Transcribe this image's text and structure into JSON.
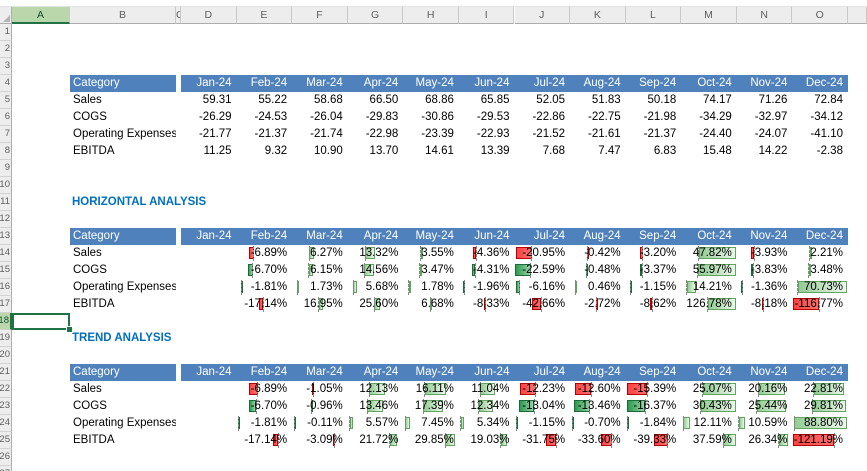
{
  "palette": {
    "table_header_blue": "#4F81BD",
    "section_title_blue": "#0070C0",
    "selection_green": "#217346",
    "selected_header_fill": "#B9D7AB",
    "bar_positive_border": "#5EA55E",
    "bar_positive_from": "#93CC93",
    "bar_positive_to": "#EDF7ED",
    "bar_negative_red_border": "#B50000",
    "bar_negative_red_from": "#FF4242",
    "bar_negative_red_to": "#FF6E6E",
    "bar_negative_green_border": "#1B6B3A",
    "bar_negative_green_from": "#2F9A50",
    "bar_negative_green_to": "#93D2A4"
  },
  "grid": {
    "column_letters": [
      "A",
      "B",
      "C",
      "D",
      "E",
      "F",
      "G",
      "H",
      "I",
      "J",
      "K",
      "L",
      "M",
      "N",
      "O"
    ],
    "row_numbers": [
      1,
      2,
      3,
      4,
      5,
      6,
      7,
      8,
      9,
      10,
      11,
      12,
      13,
      14,
      15,
      16,
      17,
      18,
      19,
      20,
      21,
      22,
      23,
      24,
      25,
      26,
      27
    ]
  },
  "selection": {
    "active_cell": "A18",
    "column": "A",
    "row": 18
  },
  "months": [
    "Jan-24",
    "Feb-24",
    "Mar-24",
    "Apr-24",
    "May-24",
    "Jun-24",
    "Jul-24",
    "Aug-24",
    "Sep-24",
    "Oct-24",
    "Nov-24",
    "Dec-24"
  ],
  "tables": [
    {
      "title": null,
      "category_header": "Category",
      "format": "number",
      "data_bars": false,
      "rows": [
        {
          "label": "Sales",
          "values": [
            59.31,
            55.22,
            58.68,
            66.5,
            68.86,
            65.85,
            52.05,
            51.83,
            50.18,
            74.17,
            71.26,
            72.84
          ]
        },
        {
          "label": "COGS",
          "values": [
            -26.29,
            -24.53,
            -26.04,
            -29.83,
            -30.86,
            -29.53,
            -22.86,
            -22.75,
            -21.98,
            -34.29,
            -32.97,
            -34.12
          ]
        },
        {
          "label": "Operating Expenses",
          "values": [
            -21.77,
            -21.37,
            -21.74,
            -22.98,
            -23.39,
            -22.93,
            -21.52,
            -21.61,
            -21.37,
            -24.4,
            -24.07,
            -41.1
          ]
        },
        {
          "label": "EBITDA",
          "values": [
            11.25,
            9.32,
            10.9,
            13.7,
            14.61,
            13.39,
            7.68,
            7.47,
            6.83,
            15.48,
            14.22,
            -2.38
          ]
        }
      ]
    },
    {
      "title": "HORIZONTAL ANALYSIS",
      "category_header": "Category",
      "format": "percent",
      "data_bars": true,
      "rows": [
        {
          "label": "Sales",
          "negative_bar": "red",
          "values": [
            null,
            -6.89,
            6.27,
            13.32,
            3.55,
            -4.36,
            -20.95,
            -0.42,
            -3.2,
            47.82,
            -3.93,
            2.21
          ]
        },
        {
          "label": "COGS",
          "negative_bar": "green",
          "values": [
            null,
            -6.7,
            6.15,
            14.56,
            3.47,
            -4.31,
            -22.59,
            -0.48,
            -3.37,
            55.97,
            -3.83,
            3.48
          ]
        },
        {
          "label": "Operating Expenses",
          "negative_bar": "green",
          "values": [
            null,
            -1.81,
            1.73,
            5.68,
            1.78,
            -1.96,
            -6.16,
            0.46,
            -1.15,
            14.21,
            -1.36,
            70.73
          ]
        },
        {
          "label": "EBITDA",
          "negative_bar": "red",
          "values": [
            null,
            -17.14,
            16.95,
            25.6,
            6.68,
            -8.33,
            -42.66,
            -2.72,
            -8.62,
            126.78,
            -8.18,
            -116.77
          ]
        }
      ]
    },
    {
      "title": "TREND ANALYSIS",
      "category_header": "Category",
      "format": "percent",
      "data_bars": true,
      "rows": [
        {
          "label": "Sales",
          "negative_bar": "red",
          "values": [
            null,
            -6.89,
            -1.05,
            12.13,
            16.11,
            11.04,
            -12.23,
            -12.6,
            -15.39,
            25.07,
            20.16,
            22.81
          ]
        },
        {
          "label": "COGS",
          "negative_bar": "green",
          "values": [
            null,
            -6.7,
            -0.96,
            13.46,
            17.39,
            12.34,
            -13.04,
            -13.46,
            -16.37,
            30.43,
            25.44,
            29.81
          ]
        },
        {
          "label": "Operating Expenses",
          "negative_bar": "green",
          "values": [
            null,
            -1.81,
            -0.11,
            5.57,
            7.45,
            5.34,
            -1.15,
            -0.7,
            -1.84,
            12.11,
            10.59,
            88.8
          ]
        },
        {
          "label": "EBITDA",
          "negative_bar": "red",
          "values": [
            null,
            -17.14,
            -3.09,
            21.72,
            29.85,
            19.03,
            -31.75,
            -33.6,
            -39.33,
            37.59,
            26.34,
            -121.19
          ]
        }
      ]
    }
  ]
}
